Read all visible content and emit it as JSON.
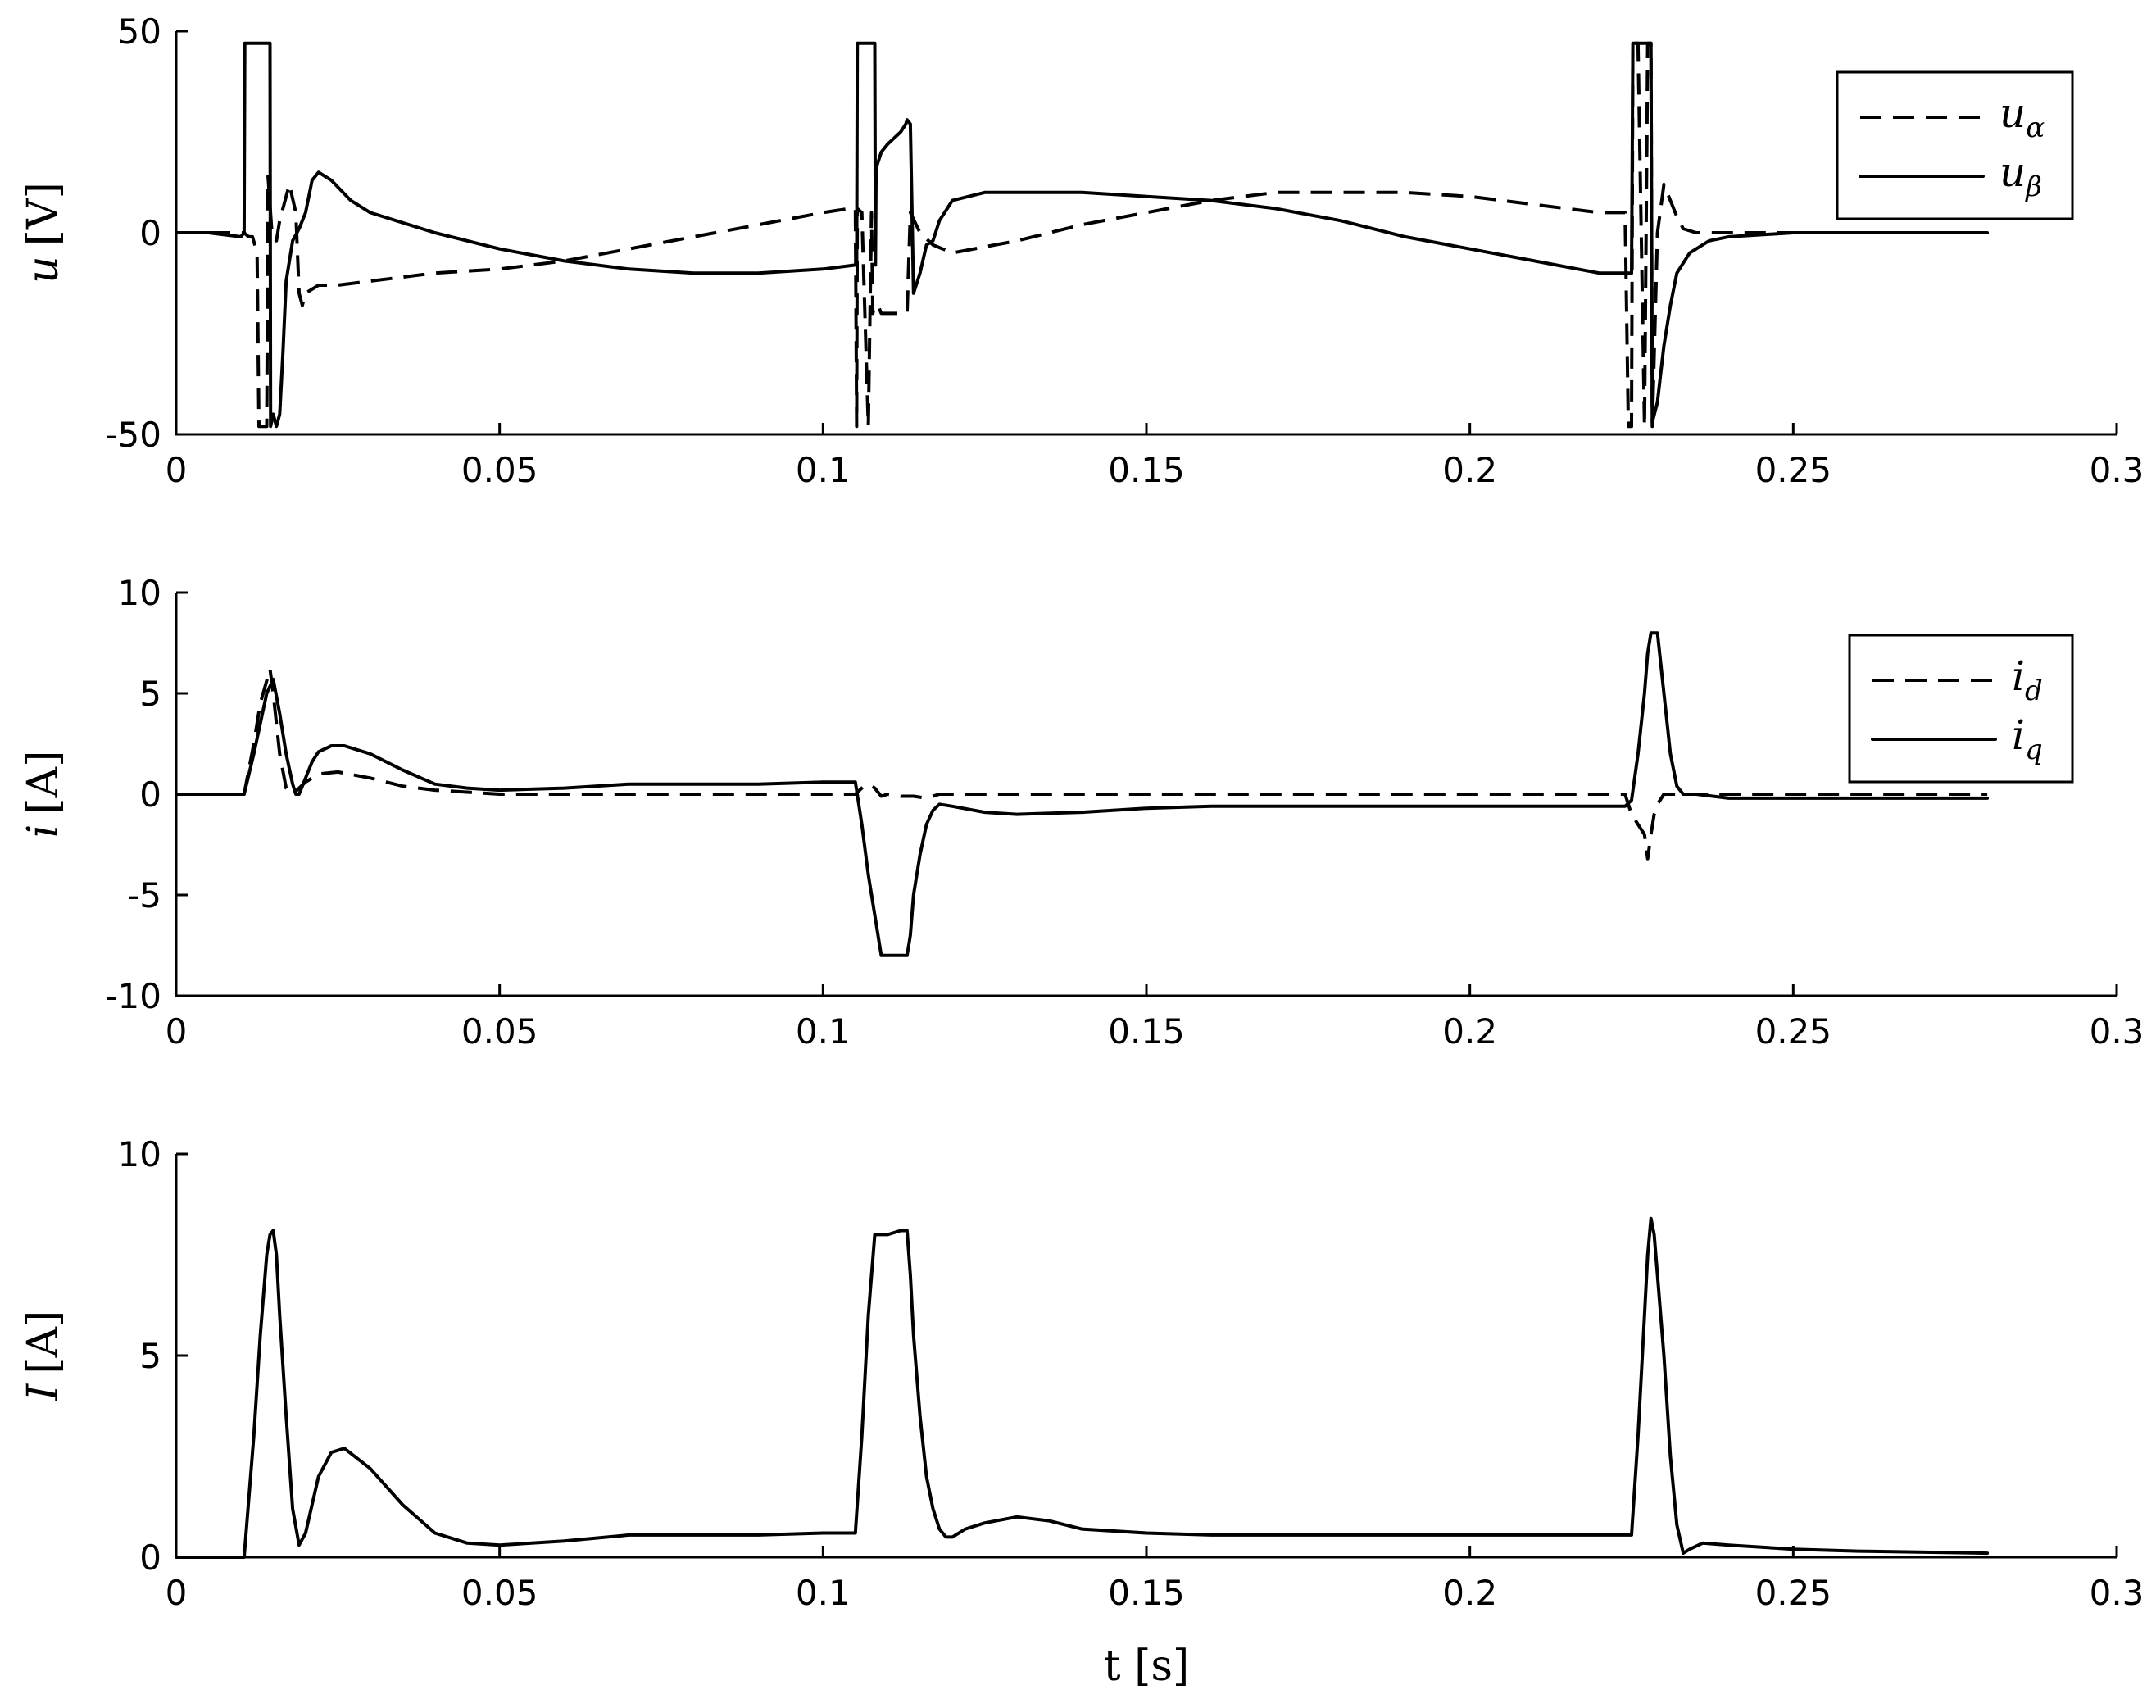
{
  "chart_data": [
    {
      "type": "line",
      "ylabel_var": "u",
      "ylabel_unit": "[V]",
      "xlim": [
        0,
        0.3
      ],
      "ylim": [
        -50,
        50
      ],
      "xticks": [
        0,
        0.05,
        0.1,
        0.15,
        0.2,
        0.25,
        0.3
      ],
      "xtick_labels": [
        "0",
        "0.05",
        "0.1",
        "0.15",
        "0.2",
        "0.25",
        "0.3"
      ],
      "yticks": [
        -50,
        0,
        50
      ],
      "ytick_labels": [
        "-50",
        "0",
        "50"
      ],
      "grid": false,
      "legend_position": "top-right",
      "series": [
        {
          "name": "uα",
          "legend_main": "u",
          "legend_sub": "α",
          "style": "dashed",
          "x": [
            0,
            0.0105,
            0.0112,
            0.0118,
            0.0125,
            0.0128,
            0.0135,
            0.014,
            0.0142,
            0.0148,
            0.0155,
            0.016,
            0.0175,
            0.0185,
            0.019,
            0.0195,
            0.02,
            0.022,
            0.025,
            0.03,
            0.04,
            0.05,
            0.06,
            0.07,
            0.08,
            0.09,
            0.1,
            0.104,
            0.1045,
            0.105,
            0.1052,
            0.1053,
            0.106,
            0.107,
            0.1075,
            0.1077,
            0.108,
            0.1085,
            0.109,
            0.11,
            0.112,
            0.113,
            0.1135,
            0.115,
            0.117,
            0.12,
            0.13,
            0.14,
            0.15,
            0.16,
            0.17,
            0.18,
            0.19,
            0.2,
            0.21,
            0.22,
            0.224,
            0.2245,
            0.225,
            0.2252,
            0.226,
            0.227,
            0.2275,
            0.228,
            0.2282,
            0.229,
            0.23,
            0.231,
            0.232,
            0.233,
            0.235,
            0.24,
            0.25,
            0.26,
            0.27,
            0.28
          ],
          "y": [
            0,
            0,
            -1,
            -1,
            -5,
            -48,
            -48,
            -48,
            14,
            0,
            -2,
            3,
            12,
            5,
            -15,
            -18,
            -15,
            -13,
            -13,
            -12,
            -10,
            -9,
            -7,
            -4,
            -1,
            2,
            5,
            6,
            6,
            6,
            -48,
            6,
            5,
            -48,
            5,
            -20,
            -18,
            -18,
            -20,
            -20,
            -20,
            -20,
            5,
            0,
            -3,
            -5,
            -2,
            2,
            5,
            8,
            10,
            10,
            10,
            9,
            7,
            5,
            5,
            -48,
            -48,
            47,
            47,
            -48,
            47,
            47,
            -48,
            0,
            12,
            8,
            4,
            1,
            0,
            0,
            0,
            0,
            0,
            0
          ]
        },
        {
          "name": "uβ",
          "legend_main": "u",
          "legend_sub": "β",
          "style": "solid",
          "x": [
            0,
            0.005,
            0.01,
            0.0105,
            0.0106,
            0.0145,
            0.0146,
            0.015,
            0.0155,
            0.016,
            0.0165,
            0.017,
            0.018,
            0.019,
            0.02,
            0.021,
            0.022,
            0.024,
            0.027,
            0.03,
            0.04,
            0.05,
            0.06,
            0.07,
            0.08,
            0.09,
            0.1,
            0.105,
            0.1052,
            0.1053,
            0.108,
            0.1081,
            0.1082,
            0.109,
            0.11,
            0.112,
            0.1128,
            0.113,
            0.1135,
            0.114,
            0.115,
            0.116,
            0.117,
            0.118,
            0.12,
            0.125,
            0.13,
            0.14,
            0.15,
            0.16,
            0.17,
            0.18,
            0.19,
            0.2,
            0.21,
            0.22,
            0.225,
            0.2252,
            0.2253,
            0.228,
            0.2282,
            0.229,
            0.2295,
            0.23,
            0.231,
            0.232,
            0.234,
            0.237,
            0.24,
            0.25,
            0.26,
            0.27,
            0.28
          ],
          "y": [
            0,
            0,
            -1,
            0,
            47,
            47,
            -48,
            -45,
            -48,
            -45,
            -30,
            -12,
            -2,
            1,
            5,
            13,
            15,
            13,
            8,
            5,
            0,
            -4,
            -7,
            -9,
            -10,
            -10,
            -9,
            -8,
            -8,
            47,
            47,
            -8,
            16,
            20,
            22,
            25,
            27,
            28,
            27,
            -15,
            -10,
            -3,
            -2,
            3,
            8,
            10,
            10,
            10,
            9,
            8,
            6,
            3,
            -1,
            -4,
            -7,
            -10,
            -10,
            47,
            47,
            47,
            -47,
            -42,
            -35,
            -28,
            -18,
            -10,
            -5,
            -2,
            -1,
            0,
            0,
            0,
            0
          ]
        }
      ]
    },
    {
      "type": "line",
      "ylabel_var": "i",
      "ylabel_unit": "[A]",
      "xlim": [
        0,
        0.3
      ],
      "ylim": [
        -10,
        10
      ],
      "xticks": [
        0,
        0.05,
        0.1,
        0.15,
        0.2,
        0.25,
        0.3
      ],
      "xtick_labels": [
        "0",
        "0.05",
        "0.1",
        "0.15",
        "0.2",
        "0.25",
        "0.3"
      ],
      "yticks": [
        -10,
        -5,
        0,
        5,
        10
      ],
      "ytick_labels": [
        "-10",
        "-5",
        "0",
        "5",
        "10"
      ],
      "grid": false,
      "legend_position": "top-right",
      "series": [
        {
          "name": "id",
          "legend_main": "i",
          "legend_sub": "d",
          "style": "dashed",
          "x": [
            0,
            0.0105,
            0.012,
            0.013,
            0.0145,
            0.015,
            0.016,
            0.017,
            0.018,
            0.019,
            0.02,
            0.022,
            0.025,
            0.03,
            0.035,
            0.04,
            0.05,
            0.06,
            0.08,
            0.1,
            0.105,
            0.106,
            0.107,
            0.108,
            0.109,
            0.11,
            0.112,
            0.114,
            0.116,
            0.118,
            0.12,
            0.15,
            0.2,
            0.224,
            0.225,
            0.226,
            0.227,
            0.2275,
            0.228,
            0.2285,
            0.229,
            0.23,
            0.232,
            0.235,
            0.25,
            0.28
          ],
          "y": [
            0,
            0,
            2.5,
            4.5,
            6.2,
            5,
            2,
            0.3,
            0,
            0.3,
            0.6,
            1,
            1.1,
            0.8,
            0.4,
            0.2,
            0,
            0,
            0,
            0,
            0,
            0.3,
            0.5,
            0.3,
            -0.1,
            0,
            -0.1,
            -0.1,
            -0.2,
            0,
            0,
            0,
            0,
            0,
            -1,
            -1.5,
            -2,
            -3.2,
            -2,
            -1,
            -0.5,
            0,
            0,
            0,
            0,
            0
          ]
        },
        {
          "name": "iq",
          "legend_main": "i",
          "legend_sub": "q",
          "style": "solid",
          "x": [
            0,
            0.0105,
            0.012,
            0.014,
            0.015,
            0.016,
            0.017,
            0.018,
            0.0185,
            0.019,
            0.02,
            0.021,
            0.022,
            0.024,
            0.026,
            0.03,
            0.035,
            0.04,
            0.045,
            0.05,
            0.06,
            0.07,
            0.08,
            0.09,
            0.1,
            0.105,
            0.106,
            0.107,
            0.108,
            0.109,
            0.11,
            0.112,
            0.113,
            0.1135,
            0.114,
            0.115,
            0.116,
            0.117,
            0.118,
            0.12,
            0.125,
            0.13,
            0.14,
            0.15,
            0.16,
            0.2,
            0.224,
            0.225,
            0.226,
            0.227,
            0.2275,
            0.228,
            0.2285,
            0.229,
            0.23,
            0.231,
            0.232,
            0.233,
            0.235,
            0.24,
            0.25,
            0.26,
            0.28
          ],
          "y": [
            0,
            0,
            2,
            5,
            5.7,
            4,
            2,
            0.5,
            0,
            0,
            0.8,
            1.6,
            2.1,
            2.4,
            2.4,
            2,
            1.2,
            0.5,
            0.3,
            0.2,
            0.3,
            0.5,
            0.5,
            0.5,
            0.6,
            0.6,
            -1.5,
            -4,
            -6,
            -8,
            -8,
            -8,
            -8,
            -7,
            -5,
            -3,
            -1.5,
            -0.8,
            -0.5,
            -0.6,
            -0.9,
            -1.0,
            -0.9,
            -0.7,
            -0.6,
            -0.6,
            -0.6,
            -0.3,
            2,
            5,
            7,
            8,
            8,
            8,
            5,
            2,
            0.4,
            0,
            0,
            -0.2,
            -0.2,
            -0.2,
            -0.2
          ]
        }
      ]
    },
    {
      "type": "line",
      "ylabel_var": "I",
      "ylabel_unit": "[A]",
      "xlabel": "t [s]",
      "xlim": [
        0,
        0.3
      ],
      "ylim": [
        0,
        10
      ],
      "xticks": [
        0,
        0.05,
        0.1,
        0.15,
        0.2,
        0.25,
        0.3
      ],
      "xtick_labels": [
        "0",
        "0.05",
        "0.1",
        "0.15",
        "0.2",
        "0.25",
        "0.3"
      ],
      "yticks": [
        0,
        5,
        10
      ],
      "ytick_labels": [
        "0",
        "5",
        "10"
      ],
      "grid": false,
      "series": [
        {
          "name": "",
          "style": "solid",
          "x": [
            0,
            0.0105,
            0.012,
            0.013,
            0.014,
            0.0145,
            0.015,
            0.0155,
            0.016,
            0.017,
            0.018,
            0.019,
            0.02,
            0.021,
            0.022,
            0.024,
            0.026,
            0.03,
            0.035,
            0.04,
            0.045,
            0.05,
            0.06,
            0.07,
            0.08,
            0.09,
            0.1,
            0.105,
            0.106,
            0.107,
            0.108,
            0.109,
            0.11,
            0.112,
            0.113,
            0.1135,
            0.114,
            0.115,
            0.116,
            0.117,
            0.118,
            0.119,
            0.12,
            0.122,
            0.125,
            0.13,
            0.135,
            0.14,
            0.15,
            0.16,
            0.2,
            0.225,
            0.226,
            0.227,
            0.2275,
            0.228,
            0.2285,
            0.229,
            0.23,
            0.231,
            0.232,
            0.233,
            0.234,
            0.236,
            0.24,
            0.25,
            0.26,
            0.28
          ],
          "y": [
            0,
            0,
            3,
            5.5,
            7.5,
            8,
            8.1,
            7.5,
            6,
            3.5,
            1.2,
            0.3,
            0.6,
            1.3,
            2,
            2.6,
            2.7,
            2.2,
            1.3,
            0.6,
            0.35,
            0.3,
            0.4,
            0.55,
            0.55,
            0.55,
            0.6,
            0.6,
            3,
            6,
            8,
            8,
            8,
            8.1,
            8.1,
            7,
            5.5,
            3.5,
            2,
            1.2,
            0.7,
            0.5,
            0.5,
            0.7,
            0.85,
            1,
            0.9,
            0.7,
            0.6,
            0.55,
            0.55,
            0.55,
            3,
            6,
            7.5,
            8.4,
            8,
            7,
            5,
            2.5,
            0.8,
            0.1,
            0.2,
            0.35,
            0.3,
            0.2,
            0.15,
            0.1
          ]
        }
      ]
    }
  ]
}
